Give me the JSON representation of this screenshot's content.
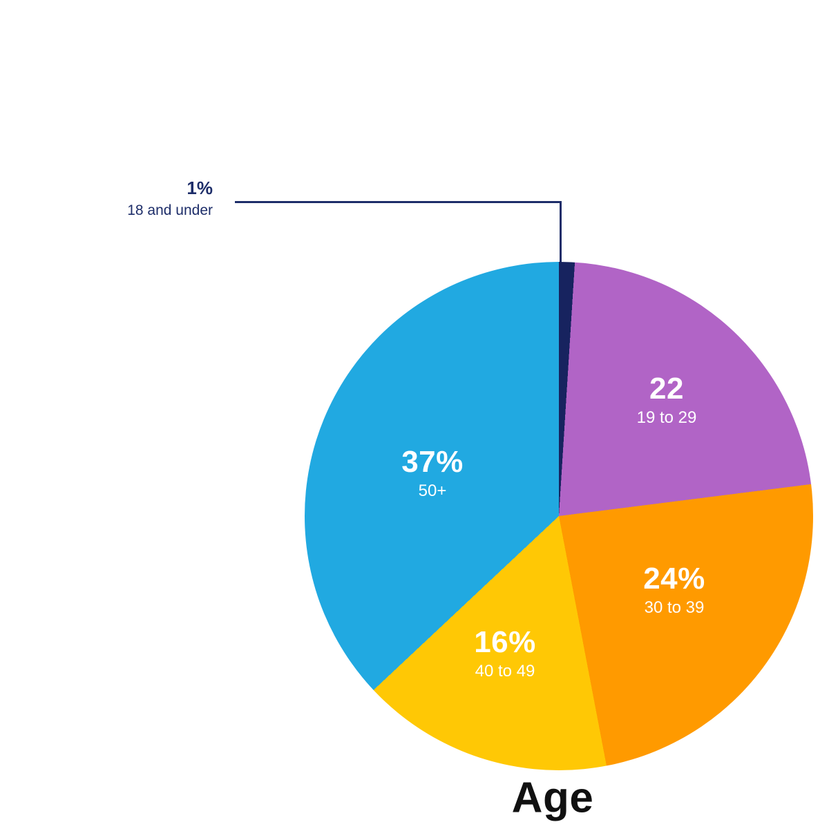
{
  "chart_data": {
    "type": "pie",
    "title": "Age",
    "start_angle_deg": 0,
    "direction": "clockwise",
    "legend_position": "in-slice",
    "slices": [
      {
        "label": "18 and under",
        "value_label": "1%",
        "percent": 1,
        "color": "#17235f",
        "label_placement": "callout"
      },
      {
        "label": "19 to 29",
        "value_label": "22",
        "percent": 22,
        "color": "#b164c6",
        "label_placement": "inside"
      },
      {
        "label": "30 to 39",
        "value_label": "24%",
        "percent": 24,
        "color": "#ff9a00",
        "label_placement": "inside"
      },
      {
        "label": "40 to 49",
        "value_label": "16%",
        "percent": 16,
        "color": "#ffc805",
        "label_placement": "inside"
      },
      {
        "label": "50+",
        "value_label": "37%",
        "percent": 37,
        "color": "#21a9e1",
        "label_placement": "inside"
      }
    ],
    "colors": {
      "callout_line": "#1d2d69",
      "callout_text": "#1d2d69",
      "inside_label_text": "#ffffff",
      "title_text": "#111111",
      "background": "#ffffff"
    }
  }
}
